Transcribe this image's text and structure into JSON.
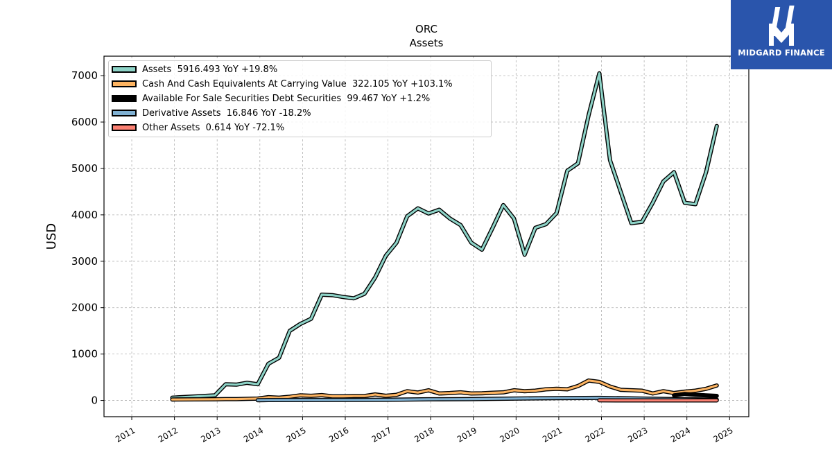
{
  "chart_data": {
    "type": "area",
    "title": "ORC",
    "subtitle": "Assets",
    "ylabel": "USD",
    "xlabel": "",
    "ylim": [
      -350,
      7420
    ],
    "xlim": [
      2010.35,
      2025.45
    ],
    "x_ticks": [
      "2011",
      "2012",
      "2013",
      "2014",
      "2015",
      "2016",
      "2017",
      "2018",
      "2019",
      "2020",
      "2021",
      "2022",
      "2023",
      "2024",
      "2025"
    ],
    "y_ticks": [
      "0",
      "1000",
      "2000",
      "3000",
      "4000",
      "5000",
      "6000",
      "7000"
    ],
    "grid": true,
    "legend_position": "top-left",
    "series": [
      {
        "name": "Assets  5916.493 YoY +19.8%",
        "color": "#8dd3c7",
        "x": [
          2011.95,
          2012.95,
          2013.2,
          2013.45,
          2013.7,
          2013.95,
          2014.2,
          2014.45,
          2014.7,
          2014.95,
          2015.2,
          2015.45,
          2015.7,
          2015.95,
          2016.2,
          2016.45,
          2016.7,
          2016.95,
          2017.2,
          2017.45,
          2017.7,
          2017.95,
          2018.2,
          2018.45,
          2018.7,
          2018.95,
          2019.2,
          2019.45,
          2019.7,
          2019.95,
          2020.2,
          2020.45,
          2020.7,
          2020.95,
          2021.2,
          2021.45,
          2021.7,
          2021.95,
          2022.2,
          2022.45,
          2022.7,
          2022.95,
          2023.2,
          2023.45,
          2023.7,
          2023.95,
          2024.2,
          2024.45,
          2024.7
        ],
        "values": [
          60,
          110,
          350,
          340,
          380,
          350,
          790,
          920,
          1500,
          1650,
          1760,
          2280,
          2270,
          2230,
          2200,
          2300,
          2650,
          3120,
          3400,
          3970,
          4140,
          4030,
          4110,
          3920,
          3780,
          3400,
          3250,
          3720,
          4210,
          3920,
          3140,
          3720,
          3800,
          4040,
          4950,
          5110,
          6150,
          7050,
          5180,
          4500,
          3820,
          3850,
          4260,
          4720,
          4920,
          4260,
          4230,
          4920,
          5916
        ]
      },
      {
        "name": "Cash And Cash Equivalents At Carrying Value  322.105 YoY +103.1%",
        "color": "#fdb462",
        "x": [
          2011.95,
          2012.95,
          2013.2,
          2013.45,
          2013.7,
          2013.95,
          2014.2,
          2014.45,
          2014.7,
          2014.95,
          2015.2,
          2015.45,
          2015.7,
          2015.95,
          2016.2,
          2016.45,
          2016.7,
          2016.95,
          2017.2,
          2017.45,
          2017.7,
          2017.95,
          2018.2,
          2018.45,
          2018.7,
          2018.95,
          2019.2,
          2019.45,
          2019.7,
          2019.95,
          2020.2,
          2020.45,
          2020.7,
          2020.95,
          2021.2,
          2021.45,
          2021.7,
          2021.95,
          2022.2,
          2022.45,
          2022.7,
          2022.95,
          2023.2,
          2023.45,
          2023.7,
          2023.95,
          2024.2,
          2024.45,
          2024.7
        ],
        "values": [
          20,
          25,
          30,
          30,
          35,
          40,
          70,
          60,
          80,
          110,
          100,
          115,
          90,
          90,
          95,
          95,
          130,
          100,
          120,
          200,
          170,
          220,
          150,
          160,
          175,
          150,
          155,
          165,
          175,
          220,
          200,
          210,
          240,
          250,
          240,
          310,
          430,
          400,
          300,
          230,
          220,
          210,
          150,
          200,
          160,
          190,
          210,
          250,
          322
        ]
      },
      {
        "name": "Available For Sale Securities Debt Securities  99.467 YoY +1.2%",
        "color": "#000000",
        "x": [
          2023.7,
          2023.95,
          2024.2,
          2024.45,
          2024.7
        ],
        "values": [
          110,
          140,
          120,
          110,
          99
        ]
      },
      {
        "name": "Derivative Assets  16.846 YoY -18.2%",
        "color": "#80b1d3",
        "x": [
          2013.95,
          2014.2,
          2015.2,
          2016.2,
          2016.95,
          2017.95,
          2018.95,
          2019.95,
          2020.95,
          2021.95,
          2022.95,
          2023.95,
          2024.7
        ],
        "values": [
          5,
          8,
          10,
          12,
          15,
          25,
          30,
          40,
          50,
          55,
          40,
          25,
          17
        ]
      },
      {
        "name": "Other Assets  0.614 YoY -72.1%",
        "color": "#fb8072",
        "x": [
          2021.95,
          2022.45,
          2022.95,
          2023.45,
          2023.95,
          2024.2,
          2024.7
        ],
        "values": [
          2,
          1.5,
          1.2,
          1,
          0.9,
          0.8,
          0.614
        ]
      }
    ]
  },
  "logo": {
    "text": "MIDGARD FINANCE",
    "background": "#2a55ac"
  }
}
